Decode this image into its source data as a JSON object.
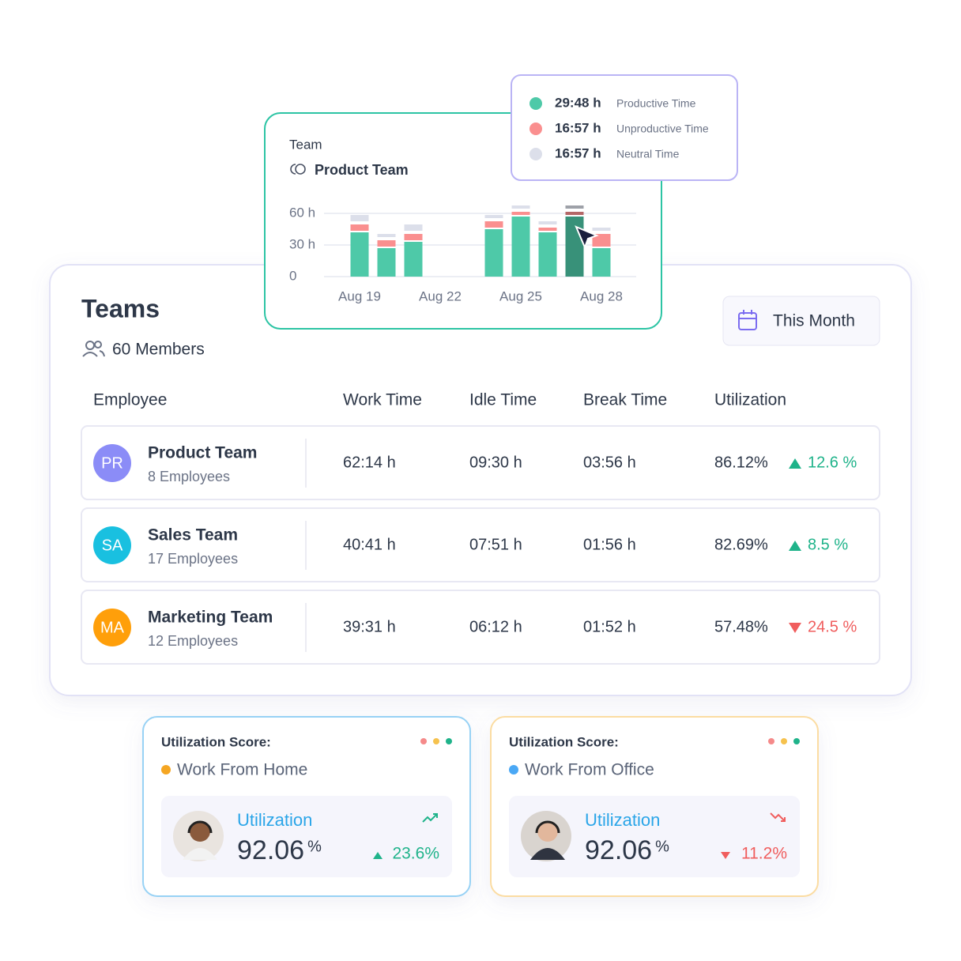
{
  "chart_card": {
    "label": "Team",
    "team": "Product Team",
    "chart": {
      "type": "bar",
      "stacked": true,
      "categories": [
        "Aug 19",
        null,
        null,
        "Aug 22",
        null,
        null,
        "Aug 25",
        null,
        null,
        "Aug 28"
      ],
      "series": [
        {
          "name": "Productive Time",
          "color": "#4ec9a8",
          "values": [
            42,
            27,
            33,
            null,
            null,
            45,
            57,
            42,
            57,
            27
          ]
        },
        {
          "name": "Unproductive Time",
          "color": "#fa8f8f",
          "values": [
            9,
            9,
            9,
            null,
            null,
            9,
            6,
            6,
            6,
            15
          ]
        },
        {
          "name": "Neutral Time",
          "color": "#dcdfea",
          "values": [
            9,
            6,
            9,
            null,
            null,
            6,
            6,
            6,
            6,
            6
          ]
        }
      ],
      "ylim": [
        0,
        75
      ],
      "yticks": [
        0,
        {
          "value": 30,
          "label": "30 h"
        },
        {
          "value": 60,
          "label": "60 h"
        }
      ],
      "grid": true,
      "highlight_index": 8
    },
    "tooltip_values": [
      "29:48 h",
      "16:57 h",
      "16:57 h"
    ]
  },
  "teams_card": {
    "title": "Teams",
    "members": "60 Members",
    "period": "This Month",
    "columns": [
      "Employee",
      "Work Time",
      "Idle Time",
      "Break Time",
      "Utilization"
    ],
    "rows": [
      {
        "initials": "PR",
        "color": "#8b8cf7",
        "name": "Product Team",
        "employees": "8 Employees",
        "work": "62:14 h",
        "idle": "09:30 h",
        "break": "03:56 h",
        "utilization": "86.12%",
        "change": "12.6 %",
        "trend": "up"
      },
      {
        "initials": "SA",
        "color": "#19c0e0",
        "name": "Sales Team",
        "employees": "17 Employees",
        "work": "40:41 h",
        "idle": "07:51 h",
        "break": "01:56 h",
        "utilization": "82.69%",
        "change": "8.5 %",
        "trend": "up"
      },
      {
        "initials": "MA",
        "color": "#ff9f0a",
        "name": "Marketing Team",
        "employees": "12 Employees",
        "work": "39:31 h",
        "idle": "06:12 h",
        "break": "01:52 h",
        "utilization": "57.48%",
        "change": "24.5 %",
        "trend": "down"
      }
    ]
  },
  "score_cards": [
    {
      "title": "Utilization Score:",
      "location": "Work From Home",
      "location_color": "#f5a623",
      "border_color": "#98d2f5",
      "metric": "Utilization",
      "value": "92.06",
      "unit": "%",
      "change": "23.6%",
      "trend": "up"
    },
    {
      "title": "Utilization Score:",
      "location": "Work From Office",
      "location_color": "#4aa8f5",
      "border_color": "#fbdca2",
      "metric": "Utilization",
      "value": "92.06",
      "unit": "%",
      "change": "11.2%",
      "trend": "down"
    }
  ]
}
